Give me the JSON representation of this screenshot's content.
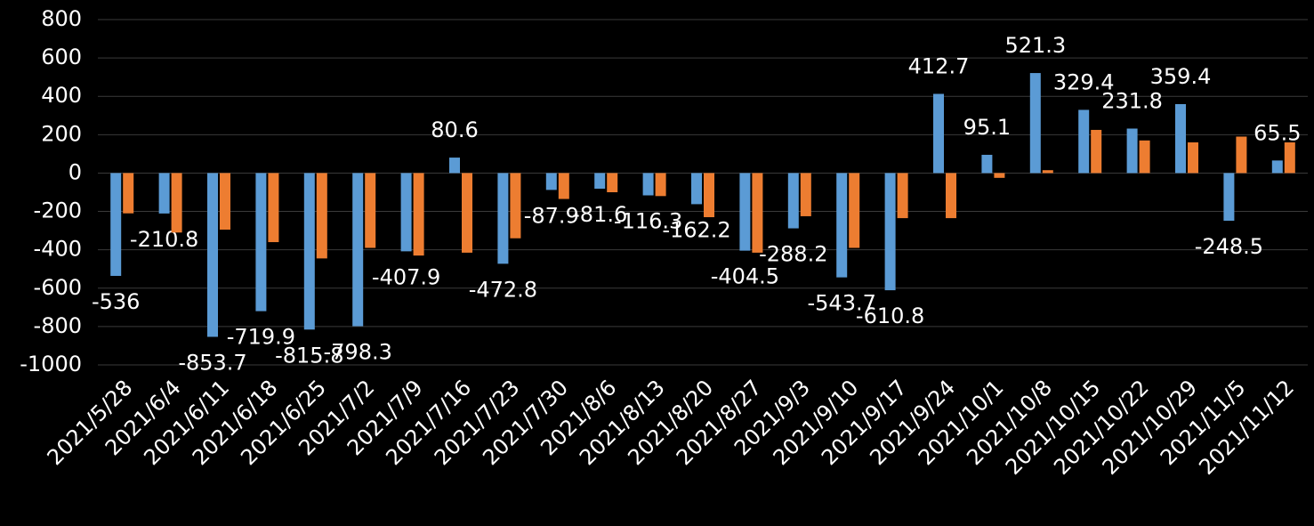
{
  "chart_data": {
    "type": "bar",
    "categories": [
      "2021/5/28",
      "2021/6/4",
      "2021/6/11",
      "2021/6/18",
      "2021/6/25",
      "2021/7/2",
      "2021/7/9",
      "2021/7/16",
      "2021/7/23",
      "2021/7/30",
      "2021/8/6",
      "2021/8/13",
      "2021/8/20",
      "2021/8/27",
      "2021/9/3",
      "2021/9/10",
      "2021/9/17",
      "2021/9/24",
      "2021/10/1",
      "2021/10/8",
      "2021/10/15",
      "2021/10/22",
      "2021/10/29",
      "2021/11/5",
      "2021/11/12"
    ],
    "series": [
      {
        "color": "#5b9bd5",
        "values": [
          -536,
          -210.8,
          -853.7,
          -719.9,
          -815.8,
          -798.3,
          -407.9,
          80.6,
          -472.8,
          -87.9,
          -81.6,
          -116.3,
          -162.2,
          -404.5,
          -288.2,
          -543.7,
          -610.8,
          412.7,
          95.1,
          521.3,
          329.4,
          231.8,
          359.4,
          -248.5,
          65.5
        ]
      },
      {
        "color": "#ed7d31",
        "values": [
          -210,
          -310,
          -295,
          -360,
          -445,
          -390,
          -430,
          -415,
          -340,
          -135,
          -100,
          -120,
          -230,
          -415,
          -225,
          -390,
          -235,
          -235,
          -25,
          15,
          225,
          170,
          160,
          190,
          160
        ]
      }
    ],
    "ylim": [
      -1000,
      800
    ],
    "yticks": [
      -1000,
      -800,
      -600,
      -400,
      -200,
      0,
      200,
      400,
      600,
      800
    ],
    "grid": true
  }
}
